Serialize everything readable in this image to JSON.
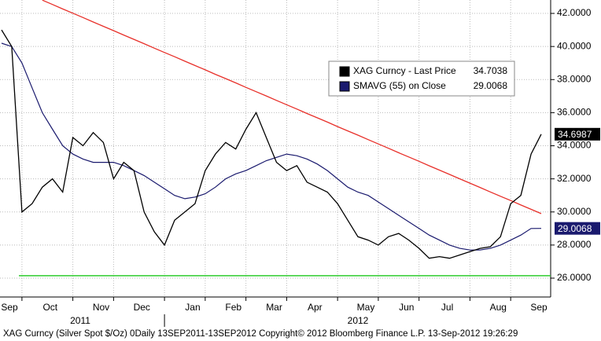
{
  "chart_data": {
    "type": "line",
    "categories": [
      "Sep",
      null,
      null,
      null,
      "Oct",
      null,
      null,
      null,
      null,
      "Nov",
      null,
      null,
      null,
      "Dec",
      null,
      null,
      null,
      null,
      "Jan",
      null,
      null,
      null,
      "Feb",
      null,
      null,
      null,
      "Mar",
      null,
      null,
      null,
      "Apr",
      null,
      null,
      null,
      null,
      "May",
      null,
      null,
      null,
      "Jun",
      null,
      null,
      null,
      "Jul",
      null,
      null,
      null,
      null,
      "Aug",
      null,
      null,
      null,
      "Sep",
      null
    ],
    "series": [
      {
        "name": "XAG Curncy - Last Price",
        "legend_value": 34.7038,
        "color": "#000000",
        "values": [
          41.0,
          40.0,
          30.0,
          30.5,
          31.5,
          32.0,
          31.2,
          34.5,
          34.0,
          34.8,
          34.2,
          32.0,
          33.0,
          32.5,
          30.0,
          28.8,
          28.0,
          29.5,
          30.0,
          30.5,
          32.5,
          33.5,
          34.2,
          33.8,
          35.0,
          36.0,
          34.5,
          33.0,
          32.5,
          32.8,
          31.8,
          31.5,
          31.2,
          30.5,
          29.5,
          28.5,
          28.3,
          28.0,
          28.5,
          28.7,
          28.3,
          27.8,
          27.2,
          27.3,
          27.2,
          27.4,
          27.6,
          27.8,
          27.9,
          28.5,
          30.5,
          31.0,
          33.5,
          34.7
        ]
      },
      {
        "name": "SMAVG (55) on Close",
        "legend_value": 29.0068,
        "color": "#1a1a6e",
        "values": [
          40.2,
          40.0,
          39.0,
          37.5,
          36.0,
          35.0,
          34.0,
          33.5,
          33.2,
          33.0,
          33.0,
          33.0,
          32.8,
          32.5,
          32.2,
          31.8,
          31.4,
          31.0,
          30.8,
          30.9,
          31.1,
          31.5,
          32.0,
          32.3,
          32.5,
          32.8,
          33.1,
          33.3,
          33.5,
          33.4,
          33.2,
          32.9,
          32.5,
          32.0,
          31.5,
          31.2,
          31.0,
          30.6,
          30.2,
          29.8,
          29.4,
          29.0,
          28.6,
          28.3,
          28.0,
          27.8,
          27.7,
          27.7,
          27.8,
          28.0,
          28.3,
          28.6,
          29.0,
          29.0068
        ]
      }
    ],
    "trend": {
      "color": "#e8302a",
      "values": [
        null,
        null,
        null,
        null,
        42.8,
        42.54,
        42.27,
        42.01,
        41.75,
        41.48,
        41.22,
        40.96,
        40.69,
        40.43,
        40.17,
        39.9,
        39.64,
        39.38,
        39.11,
        38.85,
        38.59,
        38.32,
        38.06,
        37.8,
        37.53,
        37.27,
        37.01,
        36.74,
        36.48,
        36.22,
        35.95,
        35.69,
        35.43,
        35.16,
        34.9,
        34.64,
        34.37,
        34.11,
        33.85,
        33.58,
        33.32,
        33.06,
        32.79,
        32.53,
        32.27,
        32.0,
        31.74,
        31.48,
        31.21,
        30.95,
        30.69,
        30.42,
        30.16,
        29.9
      ]
    },
    "support": {
      "value": 26.15,
      "color": "#2ecc2e"
    },
    "badges": [
      {
        "value": 34.6987,
        "color": "#000000"
      },
      {
        "value": 29.0068,
        "color": "#1a1a6e"
      }
    ],
    "years": [
      "2011",
      "2012"
    ],
    "footer": "XAG Curncy (Silver Spot  $/Oz) 0Daily 13SEP2011-13SEP2012  Copyright© 2012 Bloomberg Finance L.P.   13-Sep-2012 19:26:29",
    "ylim": [
      24.86,
      42.81
    ],
    "yticks": [
      {
        "value": 26,
        "label": "26.0000"
      },
      {
        "value": 28,
        "label": "28.0000"
      },
      {
        "value": 30,
        "label": "30.0000"
      },
      {
        "value": 32,
        "label": "32.0000"
      },
      {
        "value": 34,
        "label": "34.0000"
      },
      {
        "value": 36,
        "label": "36.0000"
      },
      {
        "value": 38,
        "label": "38.0000"
      },
      {
        "value": 40,
        "label": "40.0000"
      },
      {
        "value": 42,
        "label": "42.0000"
      }
    ],
    "grid": true
  }
}
